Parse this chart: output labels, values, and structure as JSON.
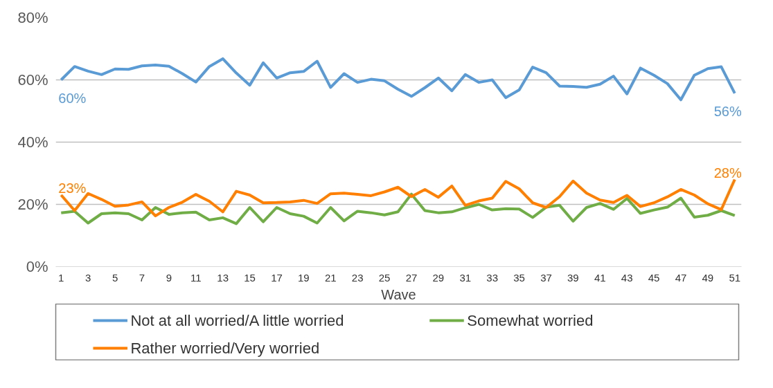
{
  "chart_data": {
    "type": "line",
    "xlabel": "Wave",
    "x": [
      1,
      2,
      3,
      4,
      5,
      6,
      7,
      8,
      9,
      10,
      11,
      12,
      13,
      14,
      15,
      16,
      17,
      18,
      19,
      20,
      21,
      22,
      23,
      24,
      25,
      26,
      27,
      28,
      29,
      30,
      31,
      32,
      33,
      34,
      35,
      36,
      37,
      38,
      39,
      40,
      41,
      42,
      43,
      44,
      45,
      46,
      47,
      48,
      49,
      50,
      51
    ],
    "xlim": [
      0.6,
      51.5
    ],
    "xticks": [
      1,
      3,
      5,
      7,
      9,
      11,
      13,
      15,
      17,
      19,
      21,
      23,
      25,
      27,
      29,
      31,
      33,
      35,
      37,
      39,
      41,
      43,
      45,
      47,
      49,
      51
    ],
    "ylim": [
      0,
      80
    ],
    "yticks": [
      {
        "value": 0,
        "label": "0%"
      },
      {
        "value": 20,
        "label": "20%"
      },
      {
        "value": 40,
        "label": "40%"
      },
      {
        "value": 60,
        "label": "60%"
      },
      {
        "value": 80,
        "label": "80%"
      }
    ],
    "grid": "y",
    "legend": "bottom",
    "marker": "none",
    "line_style": "solid",
    "series": [
      {
        "name": "Not at all worried/A little worried",
        "color": "#5b9bd5",
        "values": [
          60,
          64.3,
          62.8,
          61.7,
          63.5,
          63.4,
          64.5,
          64.8,
          64.4,
          62,
          59.3,
          64.3,
          66.8,
          62.2,
          58.3,
          65.5,
          60.6,
          62.3,
          62.7,
          66,
          57.6,
          62,
          59.2,
          60.2,
          59.7,
          57,
          54.7,
          57.5,
          60.6,
          56.5,
          61.7,
          59.2,
          60,
          54.3,
          56.8,
          64.1,
          62.3,
          58,
          57.9,
          57.6,
          58.6,
          61.2,
          55.5,
          63.8,
          61.5,
          58.8,
          53.6,
          61.5,
          63.6,
          64.2,
          55.7
        ],
        "value_labels": [
          "60%",
          null,
          null,
          null,
          null,
          null,
          null,
          null,
          null,
          null,
          null,
          null,
          null,
          null,
          null,
          null,
          null,
          null,
          null,
          null,
          null,
          null,
          null,
          null,
          null,
          null,
          null,
          null,
          null,
          null,
          null,
          null,
          null,
          null,
          null,
          null,
          null,
          null,
          null,
          null,
          null,
          null,
          null,
          null,
          null,
          null,
          null,
          null,
          null,
          null,
          "56%"
        ]
      },
      {
        "name": "Somewhat worried",
        "color": "#70ad47",
        "values": [
          17.3,
          17.8,
          14,
          17,
          17.3,
          17,
          15,
          19,
          16.8,
          17.3,
          17.5,
          15,
          15.7,
          13.8,
          19,
          14.4,
          19,
          17,
          16.2,
          14,
          19,
          14.7,
          17.8,
          17.3,
          16.6,
          17.6,
          23.3,
          18,
          17.3,
          17.6,
          18.9,
          20,
          18.2,
          18.6,
          18.5,
          15.8,
          19.1,
          19.7,
          14.6,
          19,
          20.3,
          18.4,
          21.9,
          17.1,
          18.2,
          19.1,
          22,
          15.9,
          16.5,
          18,
          16.4
        ]
      },
      {
        "name": "Rather worried/Very worried",
        "color": "#ff8000",
        "values": [
          23,
          18,
          23.5,
          21.6,
          19.4,
          19.8,
          20.8,
          16.3,
          19,
          20.7,
          23.2,
          21,
          17.6,
          24.2,
          23,
          20.5,
          20.6,
          20.8,
          21.3,
          20.3,
          23.4,
          23.6,
          23.2,
          22.8,
          24,
          25.5,
          22.5,
          24.8,
          22.3,
          25.9,
          19.7,
          21.1,
          22,
          27.4,
          25,
          20.5,
          19,
          22.5,
          27.5,
          23.6,
          21.4,
          20.6,
          22.9,
          19.3,
          20.5,
          22.4,
          24.8,
          23,
          20.2,
          18.3,
          28
        ],
        "value_labels": [
          "23%",
          null,
          null,
          null,
          null,
          null,
          null,
          null,
          null,
          null,
          null,
          null,
          null,
          null,
          null,
          null,
          null,
          null,
          null,
          null,
          null,
          null,
          null,
          null,
          null,
          null,
          null,
          null,
          null,
          null,
          null,
          null,
          null,
          null,
          null,
          null,
          null,
          null,
          null,
          null,
          null,
          null,
          null,
          null,
          null,
          null,
          null,
          null,
          null,
          null,
          "28%"
        ]
      }
    ]
  }
}
